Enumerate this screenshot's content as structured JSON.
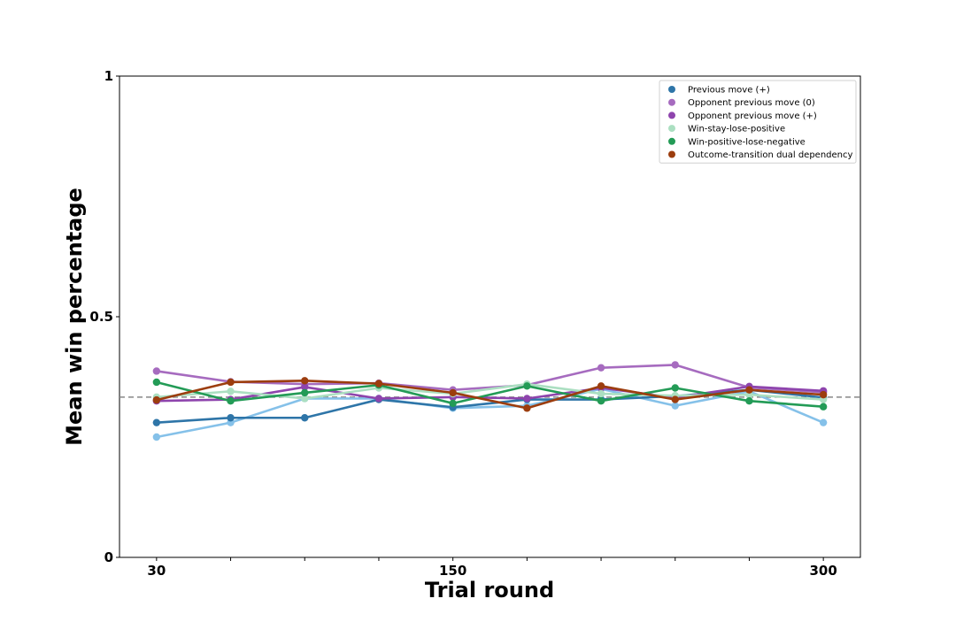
{
  "chart_data": {
    "type": "line",
    "title": "",
    "xlabel": "Trial round",
    "ylabel": "Mean win percentage",
    "x": [
      30,
      60,
      90,
      120,
      150,
      180,
      210,
      240,
      270,
      300
    ],
    "xticks": [
      30,
      150,
      300
    ],
    "xlim": [
      15,
      315
    ],
    "yticks": [
      0,
      0.5,
      1
    ],
    "ytick_labels": [
      "0",
      "0.5",
      "1"
    ],
    "ylim": [
      0,
      1
    ],
    "reference_line": {
      "y": 0.333,
      "style": "dashed",
      "color": "#888888"
    },
    "grid": false,
    "legend_position": "top-right",
    "series": [
      {
        "name": "",
        "color": "#85c1e9",
        "values": [
          0.25,
          0.28,
          0.33,
          0.33,
          0.31,
          0.315,
          0.35,
          0.315,
          0.345,
          0.28
        ]
      },
      {
        "name": "Previous move (+)",
        "color": "#2e75a8",
        "values": [
          0.28,
          0.29,
          0.29,
          0.328,
          0.312,
          0.328,
          0.328,
          0.335,
          0.348,
          0.332
        ]
      },
      {
        "name": "Opponent previous move (0)",
        "color": "#a66bbf",
        "values": [
          0.387,
          0.365,
          0.36,
          0.362,
          0.348,
          0.358,
          0.394,
          0.4,
          0.353,
          0.343
        ]
      },
      {
        "name": "Opponent previous move (+)",
        "color": "#8e44ad",
        "values": [
          0.325,
          0.328,
          0.354,
          0.33,
          0.333,
          0.33,
          0.352,
          0.332,
          0.355,
          0.346
        ]
      },
      {
        "name": "Win-stay-lose-positive",
        "color": "#abdfc1",
        "values": [
          0.333,
          0.345,
          0.33,
          0.352,
          0.34,
          0.36,
          0.34,
          0.336,
          0.338,
          0.328
        ]
      },
      {
        "name": "Win-positive-lose-negative",
        "color": "#239b56",
        "values": [
          0.364,
          0.325,
          0.342,
          0.358,
          0.32,
          0.356,
          0.325,
          0.352,
          0.325,
          0.313
        ]
      },
      {
        "name": "Outcome-transition dual dependency",
        "color": "#9c3d0e",
        "values": [
          0.327,
          0.364,
          0.367,
          0.361,
          0.342,
          0.31,
          0.356,
          0.328,
          0.348,
          0.338
        ]
      }
    ]
  }
}
